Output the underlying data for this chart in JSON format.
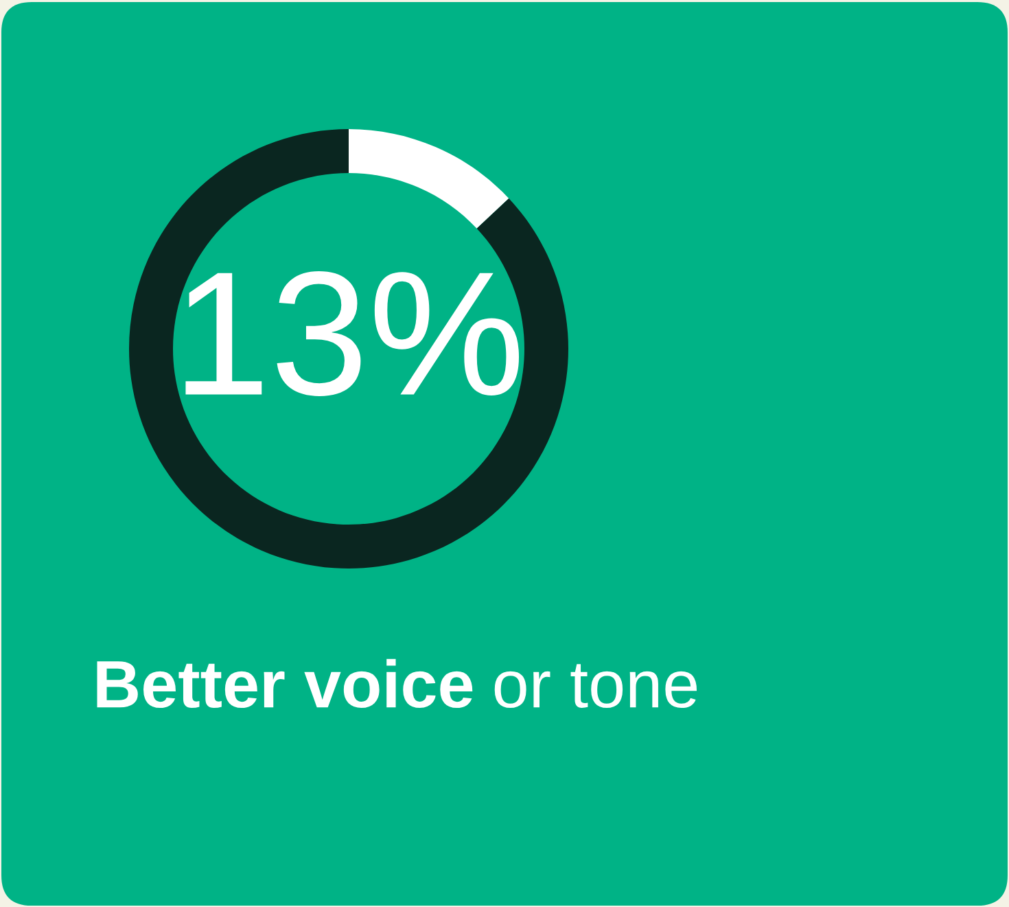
{
  "chart_data": {
    "type": "donut",
    "title": "Better voice",
    "subtitle": "or tone",
    "categories": [
      null,
      null
    ],
    "values": [
      13,
      87
    ],
    "colors": [
      "#ffffff",
      "#0a2620"
    ],
    "value_labels": [
      "13%",
      null
    ]
  }
}
